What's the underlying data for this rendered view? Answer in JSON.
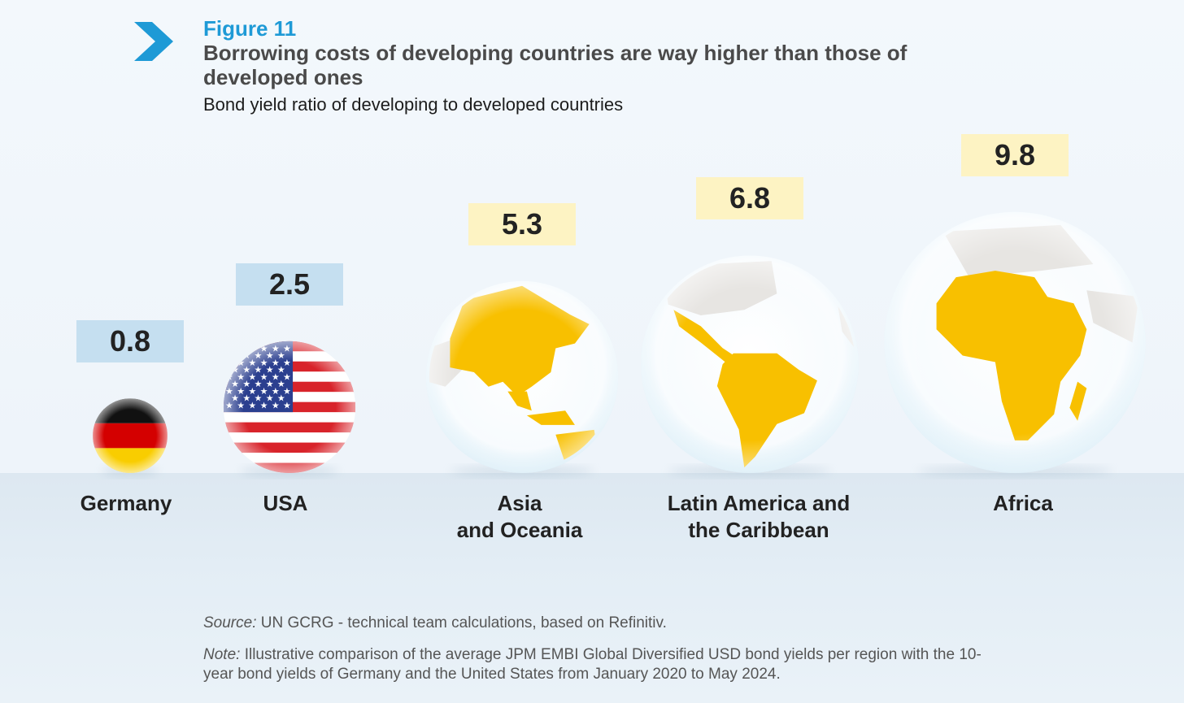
{
  "figure_label": "Figure 11",
  "title": "Borrowing costs of developing countries are way higher than those of developed ones",
  "subtitle": "Bond yield ratio of developing to developed countries",
  "source": {
    "prefix": "Source:",
    "text": " UN GCRG - technical team calculations, based on Refinitiv."
  },
  "note": {
    "prefix": "Note:",
    "text": " Illustrative comparison of the average JPM EMBI Global Diversified USD bond yields per region with the 10-year bond yields of Germany and the United States from January 2020 to May 2024."
  },
  "colors": {
    "accent": "#1e9ad6",
    "developed_box": "#c5dff0",
    "developing_box": "#fdf3c3",
    "region_fill": "#f8c000",
    "land_gray": "#e7e5e2"
  },
  "chart_data": {
    "type": "bar",
    "encoding": "bubble size",
    "categories": [
      "Germany",
      "USA",
      "Asia\nand Oceania",
      "Latin America and\nthe Caribbean",
      "Africa"
    ],
    "values": [
      0.8,
      2.5,
      5.3,
      6.8,
      9.8
    ],
    "value_labels": [
      "0.8",
      "2.5",
      "5.3",
      "6.8",
      "9.8"
    ],
    "groups": [
      "developed",
      "developed",
      "developing",
      "developing",
      "developing"
    ],
    "icons": [
      "germany-flag",
      "usa-flag",
      "asia-oceania-globe",
      "latin-america-globe",
      "africa-globe"
    ]
  }
}
